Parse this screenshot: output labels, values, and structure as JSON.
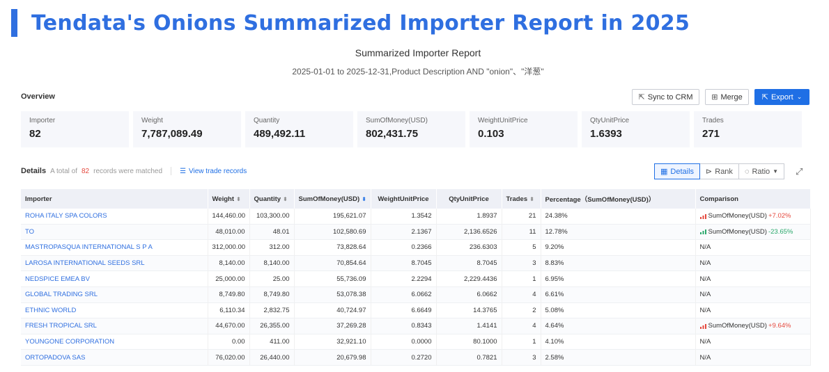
{
  "banner": {
    "title": "Tendata's Onions Summarized Importer Report in 2025"
  },
  "report": {
    "title": "Summarized Importer Report",
    "subtitle": "2025-01-01 to 2025-12-31,Product Description AND \"onion\"、\"洋葱\""
  },
  "overview": {
    "label": "Overview",
    "buttons": {
      "sync": "Sync to CRM",
      "merge": "Merge",
      "export": "Export"
    },
    "stats": [
      {
        "label": "Importer",
        "value": "82"
      },
      {
        "label": "Weight",
        "value": "7,787,089.49"
      },
      {
        "label": "Quantity",
        "value": "489,492.11"
      },
      {
        "label": "SumOfMoney(USD)",
        "value": "802,431.75"
      },
      {
        "label": "WeightUnitPrice",
        "value": "0.103"
      },
      {
        "label": "QtyUnitPrice",
        "value": "1.6393"
      },
      {
        "label": "Trades",
        "value": "271"
      }
    ]
  },
  "details": {
    "label": "Details",
    "total_prefix": "A total of",
    "count": "82",
    "total_suffix": "records were matched",
    "view_trade": "View trade records",
    "views": {
      "details": "Details",
      "rank": "Rank",
      "ratio": "Ratio"
    }
  },
  "table": {
    "headers": [
      "Importer",
      "Weight",
      "Quantity",
      "SumOfMoney(USD)",
      "WeightUnitPrice",
      "QtyUnitPrice",
      "Trades",
      "Percentage（SumOfMoney(USD)）",
      "Comparison"
    ],
    "rows": [
      {
        "importer": "ROHA ITALY SPA COLORS",
        "weight": "144,460.00",
        "quantity": "103,300.00",
        "money": "195,621.07",
        "wup": "1.3542",
        "qup": "1.8937",
        "trades": "21",
        "pct": "24.38%",
        "cmp_label": "SumOfMoney(USD)",
        "cmp_delta": "+7.02%",
        "cmp_dir": "up"
      },
      {
        "importer": "TO",
        "weight": "48,010.00",
        "quantity": "48.01",
        "money": "102,580.69",
        "wup": "2.1367",
        "qup": "2,136.6526",
        "trades": "11",
        "pct": "12.78%",
        "cmp_label": "SumOfMoney(USD)",
        "cmp_delta": "-23.65%",
        "cmp_dir": "down"
      },
      {
        "importer": "MASTROPASQUA INTERNATIONAL S P A",
        "weight": "312,000.00",
        "quantity": "312.00",
        "money": "73,828.64",
        "wup": "0.2366",
        "qup": "236.6303",
        "trades": "5",
        "pct": "9.20%",
        "cmp_label": "N/A"
      },
      {
        "importer": "LAROSA INTERNATIONAL SEEDS SRL",
        "weight": "8,140.00",
        "quantity": "8,140.00",
        "money": "70,854.64",
        "wup": "8.7045",
        "qup": "8.7045",
        "trades": "3",
        "pct": "8.83%",
        "cmp_label": "N/A"
      },
      {
        "importer": "NEDSPICE EMEA BV",
        "weight": "25,000.00",
        "quantity": "25.00",
        "money": "55,736.09",
        "wup": "2.2294",
        "qup": "2,229.4436",
        "trades": "1",
        "pct": "6.95%",
        "cmp_label": "N/A"
      },
      {
        "importer": "GLOBAL TRADING SRL",
        "weight": "8,749.80",
        "quantity": "8,749.80",
        "money": "53,078.38",
        "wup": "6.0662",
        "qup": "6.0662",
        "trades": "4",
        "pct": "6.61%",
        "cmp_label": "N/A"
      },
      {
        "importer": "ETHNIC WORLD",
        "weight": "6,110.34",
        "quantity": "2,832.75",
        "money": "40,724.97",
        "wup": "6.6649",
        "qup": "14.3765",
        "trades": "2",
        "pct": "5.08%",
        "cmp_label": "N/A"
      },
      {
        "importer": "FRESH TROPICAL SRL",
        "weight": "44,670.00",
        "quantity": "26,355.00",
        "money": "37,269.28",
        "wup": "0.8343",
        "qup": "1.4141",
        "trades": "4",
        "pct": "4.64%",
        "cmp_label": "SumOfMoney(USD)",
        "cmp_delta": "+9.64%",
        "cmp_dir": "up"
      },
      {
        "importer": "YOUNGONE CORPORATION",
        "weight": "0.00",
        "quantity": "411.00",
        "money": "32,921.10",
        "wup": "0.0000",
        "qup": "80.1000",
        "trades": "1",
        "pct": "4.10%",
        "cmp_label": "N/A"
      },
      {
        "importer": "ORTOPADOVA SAS",
        "weight": "76,020.00",
        "quantity": "26,440.00",
        "money": "20,679.98",
        "wup": "0.2720",
        "qup": "0.7821",
        "trades": "3",
        "pct": "2.58%",
        "cmp_label": "N/A"
      }
    ]
  },
  "icons": {
    "sync": "sync-icon",
    "merge": "merge-icon",
    "export": "export-icon",
    "view_trade": "records-icon",
    "details": "table-icon",
    "rank": "rank-icon",
    "ratio": "ratio-icon",
    "expand": "expand-icon"
  },
  "colors": {
    "accent": "#2f6fe0",
    "up": "#e5483d",
    "down": "#2aa86b"
  }
}
